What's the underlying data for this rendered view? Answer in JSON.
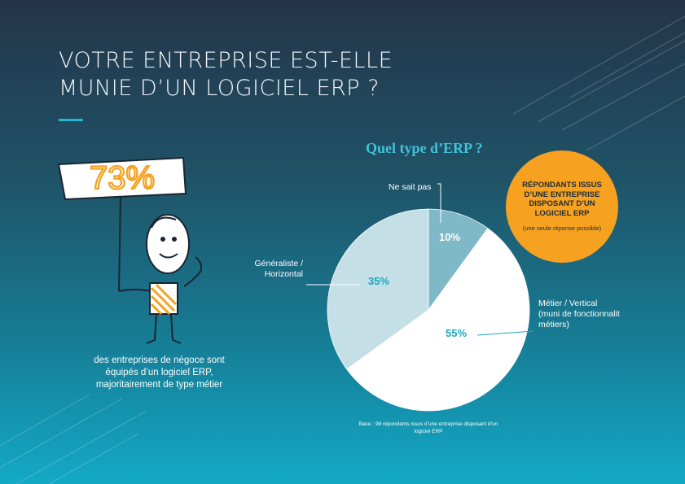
{
  "title_lines": [
    "VOTRE ENTREPRISE EST-ELLE",
    "MUNIE D’UN LOGICIEL ERP ?"
  ],
  "stat": {
    "value": "73%",
    "caption": "des entreprises de négoce sont équipés d’un logiciel ERP, majoritairement de type métier"
  },
  "badge": {
    "title": "RÉPONDANTS ISSUS D’UNE ENTREPRISE DISPOSANT D’UN LOGICIEL ERP",
    "note": "(une seule réponse possible)"
  },
  "base_note": "Base : 98 répondants issus d’une entreprise disposant d’un logiciel ERP",
  "colors": {
    "accent": "#27b4d0",
    "orange": "#f6a11f",
    "slice_metier": "#ffffff",
    "slice_generaliste": "#c5dfe6",
    "slice_nsp": "#7fb8c7"
  },
  "chart_data": {
    "type": "pie",
    "title": "Quel type d’ERP ?",
    "slices": [
      {
        "label": "Ne sait pas",
        "label_lines": [
          "Ne sait pas"
        ],
        "value": 10,
        "display": "10%"
      },
      {
        "label": "Métier / Vertical (muni de fonctionnalit métiers)",
        "label_lines": [
          "Métier / Vertical",
          "(muni de fonctionnalit",
          "métiers)"
        ],
        "value": 55,
        "display": "55%"
      },
      {
        "label": "Généraliste / Horizontal",
        "label_lines": [
          "Généraliste /",
          "Horizontal"
        ],
        "value": 35,
        "display": "35%"
      }
    ]
  }
}
